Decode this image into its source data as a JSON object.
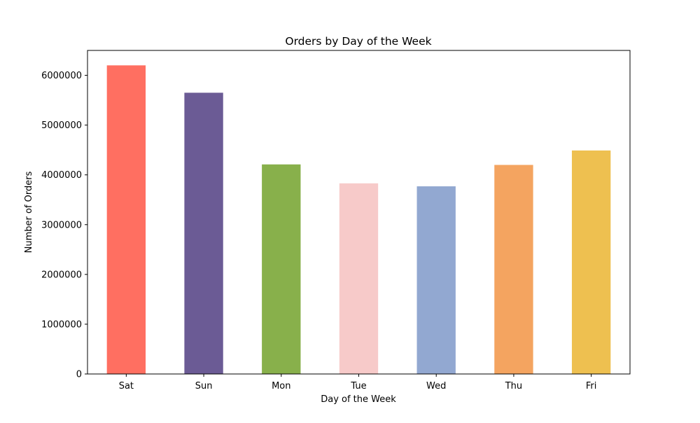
{
  "chart_data": {
    "type": "bar",
    "title": "Orders by Day of the Week",
    "xlabel": "Day of the Week",
    "ylabel": "Number of Orders",
    "categories": [
      "Sat",
      "Sun",
      "Mon",
      "Tue",
      "Wed",
      "Thu",
      "Fri"
    ],
    "values": [
      6200000,
      5650000,
      4210000,
      3830000,
      3770000,
      4200000,
      4490000
    ],
    "colors": [
      "#ff6f61",
      "#6b5b95",
      "#88b04b",
      "#f7cac9",
      "#92a8d1",
      "#f4a460",
      "#eec050"
    ],
    "ylim": [
      0,
      6500000
    ],
    "yticks": [
      0,
      1000000,
      2000000,
      3000000,
      4000000,
      5000000,
      6000000
    ],
    "ytick_labels": [
      "0",
      "1000000",
      "2000000",
      "3000000",
      "4000000",
      "5000000",
      "6000000"
    ],
    "grid": false,
    "legend": "none"
  }
}
